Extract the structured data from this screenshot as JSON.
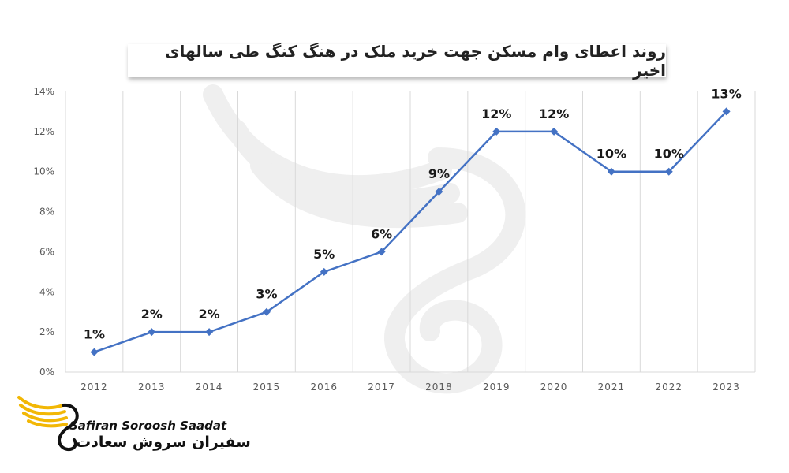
{
  "chart_data": {
    "type": "line",
    "title": "روند اعطای وام مسکن جهت خرید ملک در هنگ کنگ طی سالهای اخیر",
    "categories": [
      "2012",
      "2013",
      "2014",
      "2015",
      "2016",
      "2017",
      "2018",
      "2019",
      "2020",
      "2021",
      "2022",
      "2023"
    ],
    "values": [
      1,
      2,
      2,
      3,
      5,
      6,
      9,
      12,
      12,
      10,
      10,
      13
    ],
    "data_labels": [
      "1%",
      "2%",
      "2%",
      "3%",
      "5%",
      "6%",
      "9%",
      "12%",
      "12%",
      "10%",
      "10%",
      "13%"
    ],
    "yticks": [
      "0%",
      "2%",
      "4%",
      "6%",
      "8%",
      "10%",
      "12%",
      "14%"
    ],
    "ylim": [
      0,
      14
    ],
    "grid": "vertical",
    "line_color": "#4472C4",
    "marker": "diamond"
  },
  "logo": {
    "name_en": "Safiran Soroosh Saadat",
    "name_fa": "سفیران سروش سعادت",
    "accent_color": "#F2B705"
  }
}
